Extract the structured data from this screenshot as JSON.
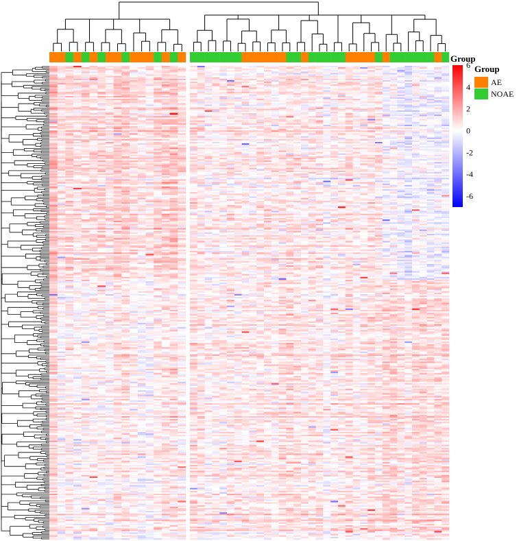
{
  "chart_data": {
    "type": "heatmap",
    "title": "",
    "annotation": {
      "title": "Group",
      "colors": {
        "AE": "#FF7F00",
        "NOAE": "#33CC33"
      },
      "columns": [
        "AE",
        "AE",
        "NOAE",
        "AE",
        "NOAE",
        "AE",
        "NOAE",
        "AE",
        "AE",
        "NOAE",
        "AE",
        "AE",
        "AE",
        "NOAE",
        "AE",
        "NOAE",
        "AE",
        "NOAE",
        "NOAE",
        "NOAE",
        "NOAE",
        "NOAE",
        "NOAE",
        "NOAE",
        "AE",
        "AE",
        "AE",
        "AE",
        "AE",
        "AE",
        "NOAE",
        "NOAE",
        "AE",
        "NOAE",
        "NOAE",
        "NOAE",
        "NOAE",
        "NOAE",
        "AE",
        "AE",
        "AE",
        "AE",
        "NOAE",
        "AE",
        "NOAE",
        "NOAE",
        "NOAE",
        "NOAE",
        "NOAE",
        "NOAE",
        "AE",
        "NOAE"
      ]
    },
    "legend": {
      "title": "Group",
      "entries": [
        "AE",
        "NOAE"
      ],
      "placement": "right"
    },
    "color_scale": {
      "min": -7,
      "max": 6,
      "ticks": [
        6,
        4,
        2,
        0,
        -2,
        -4,
        -6
      ],
      "low_color": "#0000FF",
      "mid_color": "#FFFFFF",
      "high_color": "#FF0000"
    },
    "column_split": [
      17,
      35
    ],
    "n_rows": 330,
    "row_dendrogram": true,
    "column_dendrogram": true
  }
}
